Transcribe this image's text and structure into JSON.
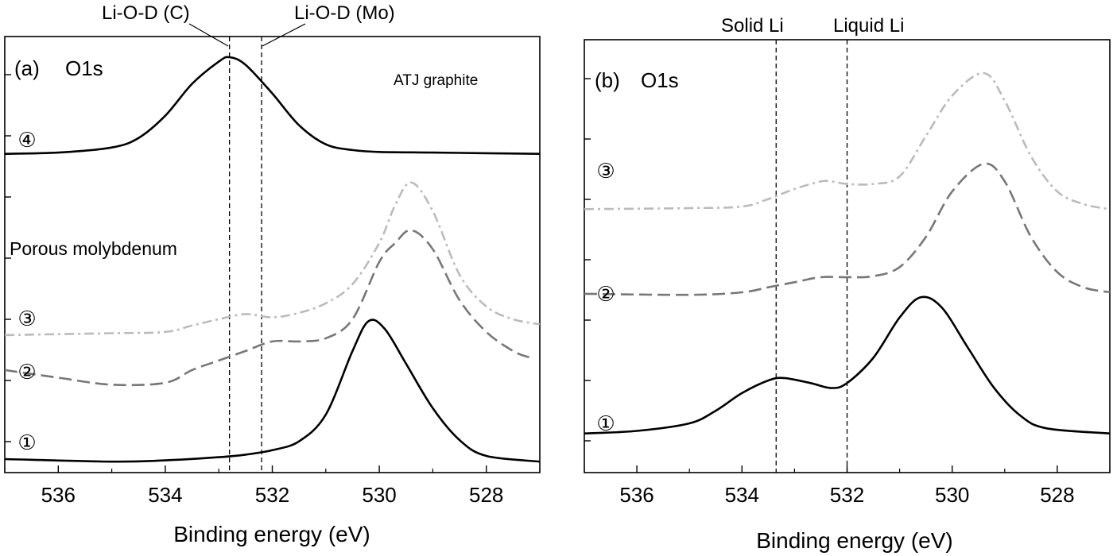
{
  "chart_data": [
    {
      "type": "line",
      "panel_label": "(a)",
      "title": "O1s",
      "xlabel": "Binding energy (eV)",
      "ylabel": "",
      "xlim": [
        537,
        527
      ],
      "x_reversed": true,
      "xticks": [
        536,
        534,
        532,
        530,
        528
      ],
      "legend": "none",
      "grid": false,
      "reference_lines": [
        {
          "label": "Li-O-D (C)",
          "x": 532.8
        },
        {
          "label": "Li-O-D (Mo)",
          "x": 532.2
        }
      ],
      "annotations": [
        "ATJ graphite",
        "Porous molybdenum"
      ],
      "series": [
        {
          "name": "④",
          "style": "solid",
          "color": "#000000",
          "baseline_ev": 527.0,
          "offset": 4.9,
          "points": [
            [
              537.0,
              4.9
            ],
            [
              536.0,
              4.92
            ],
            [
              535.0,
              5.0
            ],
            [
              534.5,
              5.15
            ],
            [
              534.0,
              5.5
            ],
            [
              533.5,
              6.0
            ],
            [
              533.0,
              6.35
            ],
            [
              532.8,
              6.42
            ],
            [
              532.5,
              6.3
            ],
            [
              532.0,
              5.85
            ],
            [
              531.5,
              5.35
            ],
            [
              531.0,
              5.05
            ],
            [
              530.5,
              4.96
            ],
            [
              530.0,
              4.93
            ],
            [
              529.0,
              4.92
            ],
            [
              528.0,
              4.91
            ],
            [
              527.0,
              4.9
            ]
          ]
        },
        {
          "name": "③",
          "style": "dashdot",
          "color": "#bbbbbb",
          "offset": 2.05,
          "points": [
            [
              537.0,
              2.05
            ],
            [
              535.0,
              2.08
            ],
            [
              534.0,
              2.1
            ],
            [
              533.5,
              2.2
            ],
            [
              533.0,
              2.3
            ],
            [
              532.5,
              2.38
            ],
            [
              532.0,
              2.33
            ],
            [
              531.5,
              2.4
            ],
            [
              531.0,
              2.55
            ],
            [
              530.5,
              2.85
            ],
            [
              530.0,
              3.5
            ],
            [
              529.7,
              4.1
            ],
            [
              529.4,
              4.45
            ],
            [
              529.0,
              4.0
            ],
            [
              528.5,
              3.0
            ],
            [
              528.0,
              2.5
            ],
            [
              527.5,
              2.3
            ],
            [
              527.0,
              2.22
            ]
          ]
        },
        {
          "name": "②",
          "style": "dashed",
          "color": "#777777",
          "offset": 1.45,
          "points": [
            [
              537.0,
              1.5
            ],
            [
              536.0,
              1.38
            ],
            [
              535.0,
              1.27
            ],
            [
              534.0,
              1.3
            ],
            [
              533.5,
              1.5
            ],
            [
              533.0,
              1.65
            ],
            [
              532.5,
              1.8
            ],
            [
              532.0,
              1.95
            ],
            [
              531.5,
              1.95
            ],
            [
              531.0,
              2.0
            ],
            [
              530.5,
              2.3
            ],
            [
              530.0,
              3.2
            ],
            [
              529.7,
              3.5
            ],
            [
              529.4,
              3.7
            ],
            [
              529.0,
              3.4
            ],
            [
              528.5,
              2.6
            ],
            [
              528.0,
              2.1
            ],
            [
              527.5,
              1.8
            ],
            [
              527.2,
              1.7
            ]
          ]
        },
        {
          "name": "①",
          "style": "solid",
          "color": "#000000",
          "offset": 0.1,
          "points": [
            [
              537.0,
              0.1
            ],
            [
              535.0,
              0.06
            ],
            [
              534.0,
              0.08
            ],
            [
              533.0,
              0.13
            ],
            [
              532.5,
              0.17
            ],
            [
              532.0,
              0.24
            ],
            [
              531.5,
              0.38
            ],
            [
              531.0,
              0.8
            ],
            [
              530.5,
              1.8
            ],
            [
              530.2,
              2.27
            ],
            [
              529.9,
              2.15
            ],
            [
              529.5,
              1.6
            ],
            [
              529.0,
              0.9
            ],
            [
              528.5,
              0.4
            ],
            [
              528.0,
              0.15
            ],
            [
              527.0,
              0.06
            ]
          ]
        }
      ]
    },
    {
      "type": "line",
      "panel_label": "(b)",
      "title": "O1s",
      "xlabel": "Binding energy (eV)",
      "ylabel": "",
      "xlim": [
        537,
        527
      ],
      "x_reversed": true,
      "xticks": [
        536,
        534,
        532,
        530,
        528
      ],
      "legend": "none",
      "grid": false,
      "reference_lines": [
        {
          "label": "Solid Li",
          "x": 533.35
        },
        {
          "label": "Liquid Li",
          "x": 532.0
        }
      ],
      "annotations": [],
      "series": [
        {
          "name": "③",
          "style": "dashdot",
          "color": "#bbbbbb",
          "offset": 4.55,
          "points": [
            [
              537.0,
              4.55
            ],
            [
              535.0,
              4.57
            ],
            [
              534.0,
              4.6
            ],
            [
              533.5,
              4.75
            ],
            [
              533.0,
              4.95
            ],
            [
              532.5,
              5.1
            ],
            [
              532.3,
              5.1
            ],
            [
              532.0,
              5.05
            ],
            [
              531.5,
              5.05
            ],
            [
              531.0,
              5.2
            ],
            [
              530.5,
              6.0
            ],
            [
              530.0,
              6.8
            ],
            [
              529.4,
              7.25
            ],
            [
              529.0,
              6.7
            ],
            [
              528.5,
              5.6
            ],
            [
              528.0,
              4.9
            ],
            [
              527.5,
              4.65
            ],
            [
              527.0,
              4.55
            ]
          ]
        },
        {
          "name": "②",
          "style": "dashed",
          "color": "#777777",
          "offset": 2.85,
          "points": [
            [
              537.0,
              2.87
            ],
            [
              535.0,
              2.85
            ],
            [
              534.0,
              2.9
            ],
            [
              533.5,
              3.0
            ],
            [
              533.0,
              3.1
            ],
            [
              532.5,
              3.2
            ],
            [
              532.0,
              3.2
            ],
            [
              531.5,
              3.22
            ],
            [
              531.0,
              3.4
            ],
            [
              530.5,
              4.0
            ],
            [
              530.0,
              4.9
            ],
            [
              529.4,
              5.45
            ],
            [
              529.0,
              5.1
            ],
            [
              528.5,
              4.0
            ],
            [
              528.0,
              3.3
            ],
            [
              527.5,
              3.0
            ],
            [
              527.0,
              2.9
            ]
          ]
        },
        {
          "name": "①",
          "style": "solid",
          "color": "#000000",
          "offset": 0.1,
          "points": [
            [
              537.0,
              0.1
            ],
            [
              536.0,
              0.15
            ],
            [
              535.0,
              0.3
            ],
            [
              534.5,
              0.55
            ],
            [
              534.0,
              0.9
            ],
            [
              533.5,
              1.15
            ],
            [
              533.2,
              1.2
            ],
            [
              532.7,
              1.1
            ],
            [
              532.3,
              1.0
            ],
            [
              532.0,
              1.1
            ],
            [
              531.5,
              1.6
            ],
            [
              531.0,
              2.4
            ],
            [
              530.6,
              2.8
            ],
            [
              530.2,
              2.6
            ],
            [
              529.7,
              1.8
            ],
            [
              529.2,
              1.0
            ],
            [
              528.7,
              0.45
            ],
            [
              528.2,
              0.2
            ],
            [
              527.0,
              0.1
            ]
          ]
        }
      ]
    }
  ]
}
